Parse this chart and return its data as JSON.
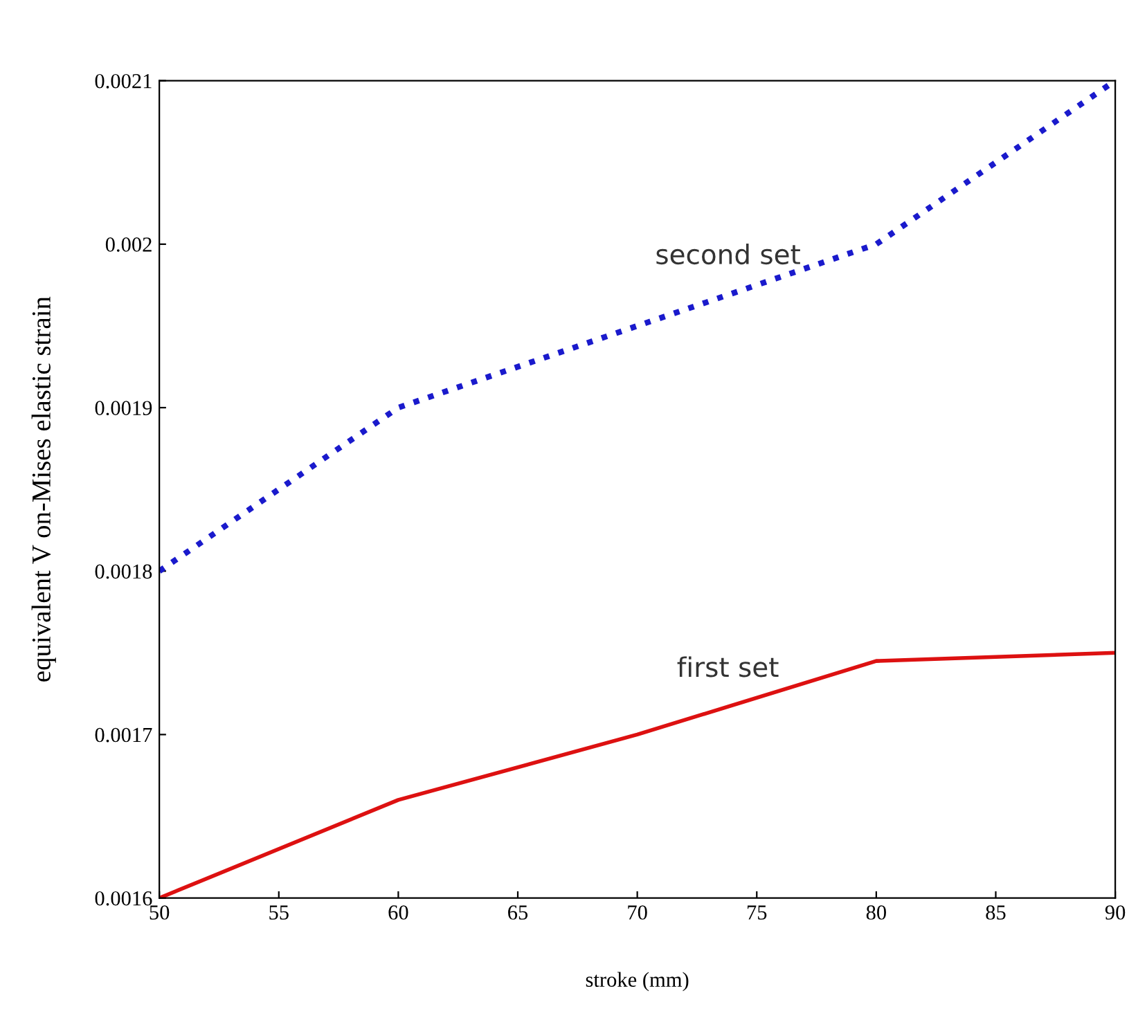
{
  "chart_data": {
    "type": "line",
    "xlabel": "stroke (mm)",
    "ylabel": "equivalent V on-Mises elastic strain",
    "x": [
      50,
      60,
      70,
      80,
      90
    ],
    "series": [
      {
        "name": "second set",
        "color": "#1a1acc",
        "values": [
          0.0018,
          0.0019,
          0.00195,
          0.002,
          0.0021
        ],
        "line_style": "dotted"
      },
      {
        "name": "first set",
        "color": "#dd1111",
        "values": [
          0.0016,
          0.00166,
          0.0017,
          0.001745,
          0.00175
        ],
        "line_style": "solid"
      }
    ],
    "xlim": [
      50,
      90
    ],
    "xticks": [
      50,
      55,
      60,
      65,
      70,
      75,
      80,
      85,
      90
    ],
    "ylim": [
      0.0016,
      0.0021
    ],
    "yticks": [
      0.0016,
      0.0017,
      0.0018,
      0.0019,
      0.002,
      0.0021
    ],
    "grid": false,
    "legend": false,
    "marker": "none"
  }
}
